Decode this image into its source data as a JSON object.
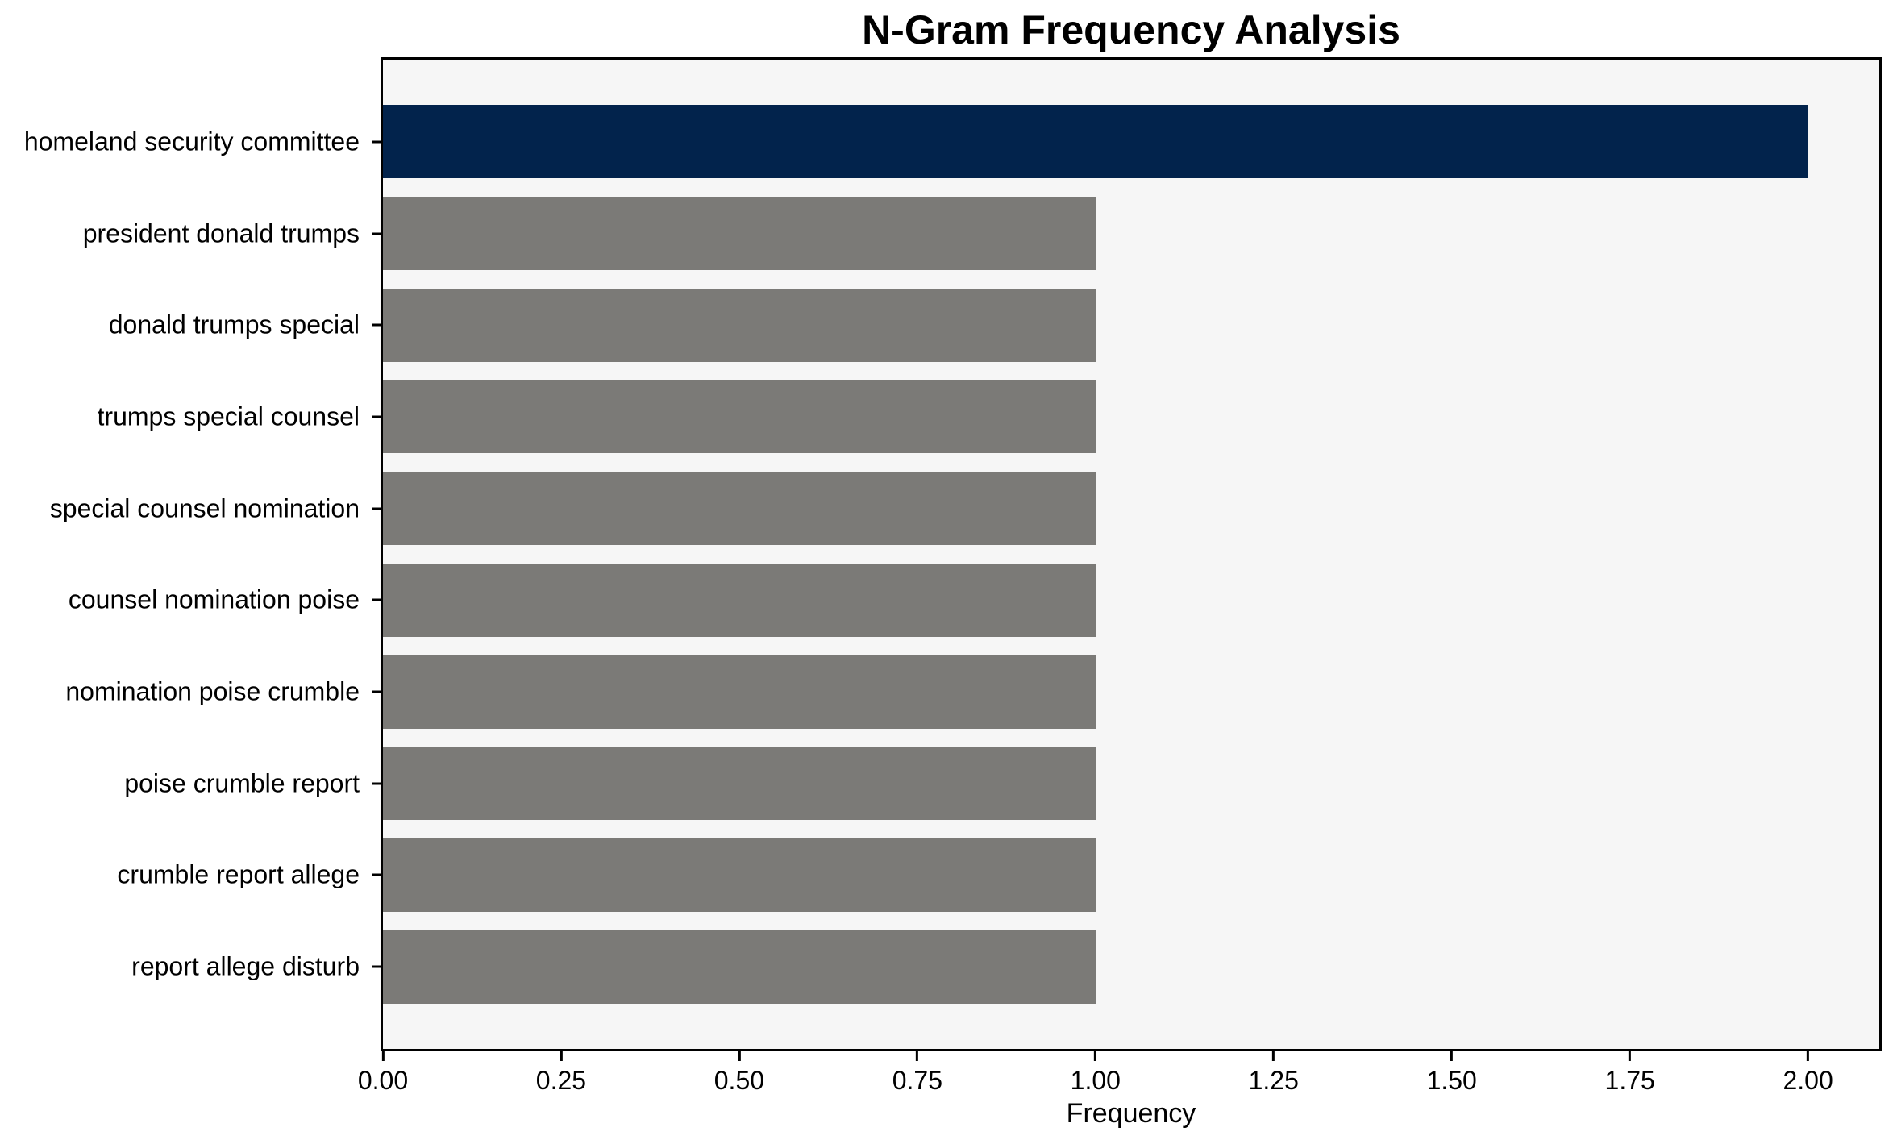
{
  "figure": {
    "background_color": "#ffffff",
    "plot_background_color": "#f6f6f6",
    "frame_color": "#000000"
  },
  "chart_data": {
    "type": "bar",
    "orientation": "horizontal",
    "title": "N-Gram Frequency Analysis",
    "xlabel": "Frequency",
    "ylabel": "",
    "categories": [
      "homeland security committee",
      "president donald trumps",
      "donald trumps special",
      "trumps special counsel",
      "special counsel nomination",
      "counsel nomination poise",
      "nomination poise crumble",
      "poise crumble report",
      "crumble report allege",
      "report allege disturb"
    ],
    "values": [
      2,
      1,
      1,
      1,
      1,
      1,
      1,
      1,
      1,
      1
    ],
    "bar_colors": [
      "#02234c",
      "#7b7a77",
      "#7b7a77",
      "#7b7a77",
      "#7b7a77",
      "#7b7a77",
      "#7b7a77",
      "#7b7a77",
      "#7b7a77",
      "#7b7a77"
    ],
    "highlight_color": "#02234c",
    "default_bar_color": "#7b7a77",
    "xlim": [
      0,
      2.1
    ],
    "xticks": [
      0.0,
      0.25,
      0.5,
      0.75,
      1.0,
      1.25,
      1.5,
      1.75,
      2.0
    ],
    "xtick_labels": [
      "0.00",
      "0.25",
      "0.50",
      "0.75",
      "1.00",
      "1.25",
      "1.50",
      "1.75",
      "2.00"
    ],
    "grid": false,
    "legend": null,
    "bar_relative_height": 0.8
  }
}
